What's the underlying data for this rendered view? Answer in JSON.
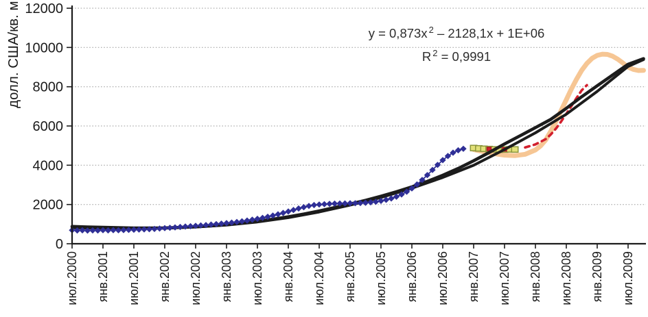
{
  "chart_data": {
    "type": "line",
    "title": "",
    "xlabel": "",
    "ylabel": "долл. США/кв. м",
    "ylim": [
      0,
      12000
    ],
    "y_ticks": [
      0,
      2000,
      4000,
      6000,
      8000,
      10000,
      12000
    ],
    "x_tick_labels": [
      "июл.2000",
      "янв.2001",
      "июл.2001",
      "янв.2002",
      "июл.2002",
      "янв.2003",
      "июл.2003",
      "янв.2004",
      "июл.2004",
      "янв.2005",
      "июл.2005",
      "янв.2006",
      "июл.2006",
      "янв.2007",
      "июл.2007",
      "янв.2008",
      "июл.2008",
      "янв.2009",
      "июл.2009"
    ],
    "months_per_tick": 6,
    "grid": "horizontal-dotted",
    "gridline_color": "#9b9b9b",
    "axis_color": "#1c1c1c",
    "annotations": {
      "eq_prefix": "y = 0,873x",
      "eq_sup": "2",
      "eq_suffix": " – 2128,1x + 1E+06",
      "r2_prefix": "R",
      "r2_sup": "2",
      "r2_suffix": " = 0,9991"
    },
    "series": [
      {
        "name": "forecast-orange-line",
        "type": "line",
        "color": "#F6C694",
        "width": 7,
        "points": [
          [
            78,
            4800
          ],
          [
            80,
            4690
          ],
          [
            82,
            4590
          ],
          [
            84,
            4515
          ],
          [
            86,
            4490
          ],
          [
            88,
            4555
          ],
          [
            90,
            4780
          ],
          [
            91,
            4985
          ],
          [
            92,
            5290
          ],
          [
            93,
            5740
          ],
          [
            94,
            6240
          ],
          [
            95,
            6790
          ],
          [
            96,
            7340
          ],
          [
            97,
            7890
          ],
          [
            98,
            8390
          ],
          [
            99,
            8840
          ],
          [
            100,
            9190
          ],
          [
            101,
            9445
          ],
          [
            102,
            9595
          ],
          [
            103,
            9660
          ],
          [
            104,
            9645
          ],
          [
            105,
            9555
          ],
          [
            106,
            9400
          ],
          [
            107,
            9205
          ],
          [
            108,
            9000
          ],
          [
            109,
            8885
          ],
          [
            110,
            8825
          ],
          [
            111,
            8835
          ]
        ]
      },
      {
        "name": "forecast-red-dashed-line",
        "type": "line",
        "color": "#D21F2D",
        "width": 3.6,
        "dash": "6.5 6.5",
        "points": [
          [
            88,
            4905
          ],
          [
            90,
            5060
          ],
          [
            92,
            5330
          ],
          [
            93,
            5570
          ],
          [
            94,
            5870
          ],
          [
            95,
            6230
          ],
          [
            96,
            6620
          ],
          [
            97,
            7020
          ],
          [
            98,
            7430
          ],
          [
            99,
            7820
          ],
          [
            100,
            8080
          ]
        ]
      },
      {
        "name": "offer-price-yellow-squares",
        "type": "scatter",
        "marker": "square",
        "color": "#E2E078",
        "stroke": "#8C963C",
        "marker_w": 9.5,
        "marker_h": 8,
        "points": [
          [
            78,
            4878
          ],
          [
            79,
            4858
          ],
          [
            80,
            4840
          ],
          [
            81,
            4824
          ],
          [
            82,
            4806
          ],
          [
            83,
            4792
          ],
          [
            84,
            4800
          ],
          [
            85,
            4812
          ],
          [
            86,
            4802
          ]
        ]
      },
      {
        "name": "red-square-markers",
        "type": "scatter",
        "marker": "square",
        "color": "#D21F2D",
        "stroke": "#B01722",
        "marker_w": 6,
        "marker_h": 5,
        "points": [
          [
            81,
            4828
          ],
          [
            84,
            4806
          ]
        ]
      },
      {
        "name": "actual-price-black-line",
        "type": "line",
        "color": "#1c1c1c",
        "width": 4.6,
        "points": [
          [
            0,
            880
          ],
          [
            3,
            856
          ],
          [
            6,
            835
          ],
          [
            9,
            816
          ],
          [
            12,
            804
          ],
          [
            15,
            798
          ],
          [
            18,
            806
          ],
          [
            21,
            830
          ],
          [
            24,
            866
          ],
          [
            27,
            914
          ],
          [
            30,
            974
          ],
          [
            33,
            1052
          ],
          [
            36,
            1144
          ],
          [
            39,
            1250
          ],
          [
            42,
            1374
          ],
          [
            45,
            1514
          ],
          [
            48,
            1672
          ],
          [
            51,
            1844
          ],
          [
            54,
            2022
          ],
          [
            57,
            2212
          ],
          [
            60,
            2420
          ],
          [
            63,
            2648
          ],
          [
            66,
            2900
          ],
          [
            69,
            3178
          ],
          [
            72,
            3490
          ],
          [
            75,
            3836
          ],
          [
            78,
            4228
          ],
          [
            81,
            4648
          ],
          [
            84,
            5082
          ],
          [
            87,
            5498
          ],
          [
            90,
            5916
          ],
          [
            93,
            6338
          ],
          [
            96,
            6900
          ],
          [
            99,
            7492
          ],
          [
            102,
            8048
          ],
          [
            105,
            8598
          ],
          [
            108,
            9142
          ],
          [
            111,
            9428
          ]
        ]
      },
      {
        "name": "polynomial-trend-black-line",
        "type": "line",
        "color": "#1c1c1c",
        "width": 4,
        "points": [
          [
            0,
            812
          ],
          [
            6,
            790
          ],
          [
            12,
            784
          ],
          [
            18,
            800
          ],
          [
            24,
            852
          ],
          [
            30,
            948
          ],
          [
            36,
            1108
          ],
          [
            42,
            1330
          ],
          [
            48,
            1618
          ],
          [
            54,
            1966
          ],
          [
            60,
            2356
          ],
          [
            66,
            2828
          ],
          [
            72,
            3376
          ],
          [
            78,
            3998
          ],
          [
            84,
            4800
          ],
          [
            90,
            5650
          ],
          [
            96,
            6600
          ],
          [
            102,
            7760
          ],
          [
            105,
            8400
          ],
          [
            108,
            9030
          ],
          [
            111,
            9385
          ]
        ]
      },
      {
        "name": "monthly-price-blue-diamonds",
        "type": "line-scatter",
        "marker": "diamond",
        "color": "#2F2F96",
        "stroke": "#2F2F96",
        "width": 1.8,
        "marker_w": 9.4,
        "marker_h": 9.2,
        "points": [
          [
            0,
            690
          ],
          [
            1,
            676
          ],
          [
            2,
            684
          ],
          [
            3,
            671
          ],
          [
            4,
            681
          ],
          [
            5,
            675
          ],
          [
            6,
            690
          ],
          [
            7,
            681
          ],
          [
            8,
            694
          ],
          [
            9,
            688
          ],
          [
            10,
            699
          ],
          [
            11,
            705
          ],
          [
            12,
            714
          ],
          [
            13,
            722
          ],
          [
            14,
            731
          ],
          [
            15,
            741
          ],
          [
            16,
            755
          ],
          [
            17,
            774
          ],
          [
            18,
            794
          ],
          [
            19,
            814
          ],
          [
            20,
            834
          ],
          [
            21,
            854
          ],
          [
            22,
            874
          ],
          [
            23,
            894
          ],
          [
            24,
            914
          ],
          [
            25,
            934
          ],
          [
            26,
            954
          ],
          [
            27,
            976
          ],
          [
            28,
            1000
          ],
          [
            29,
            1024
          ],
          [
            30,
            1050
          ],
          [
            31,
            1078
          ],
          [
            32,
            1110
          ],
          [
            33,
            1144
          ],
          [
            34,
            1184
          ],
          [
            35,
            1226
          ],
          [
            36,
            1270
          ],
          [
            37,
            1320
          ],
          [
            38,
            1374
          ],
          [
            39,
            1434
          ],
          [
            40,
            1500
          ],
          [
            41,
            1570
          ],
          [
            42,
            1644
          ],
          [
            43,
            1720
          ],
          [
            44,
            1795
          ],
          [
            45,
            1864
          ],
          [
            46,
            1925
          ],
          [
            47,
            1970
          ],
          [
            48,
            2000
          ],
          [
            49,
            2018
          ],
          [
            50,
            2032
          ],
          [
            51,
            2044
          ],
          [
            52,
            2050
          ],
          [
            53,
            2056
          ],
          [
            54,
            2060
          ],
          [
            55,
            2066
          ],
          [
            56,
            2076
          ],
          [
            57,
            2090
          ],
          [
            58,
            2110
          ],
          [
            59,
            2140
          ],
          [
            60,
            2182
          ],
          [
            61,
            2236
          ],
          [
            62,
            2306
          ],
          [
            63,
            2396
          ],
          [
            64,
            2510
          ],
          [
            65,
            2650
          ],
          [
            66,
            2820
          ],
          [
            67,
            3020
          ],
          [
            68,
            3250
          ],
          [
            69,
            3500
          ],
          [
            70,
            3760
          ],
          [
            71,
            4020
          ],
          [
            72,
            4260
          ],
          [
            73,
            4470
          ],
          [
            74,
            4640
          ],
          [
            75,
            4760
          ],
          [
            76,
            4840
          ]
        ]
      }
    ]
  }
}
